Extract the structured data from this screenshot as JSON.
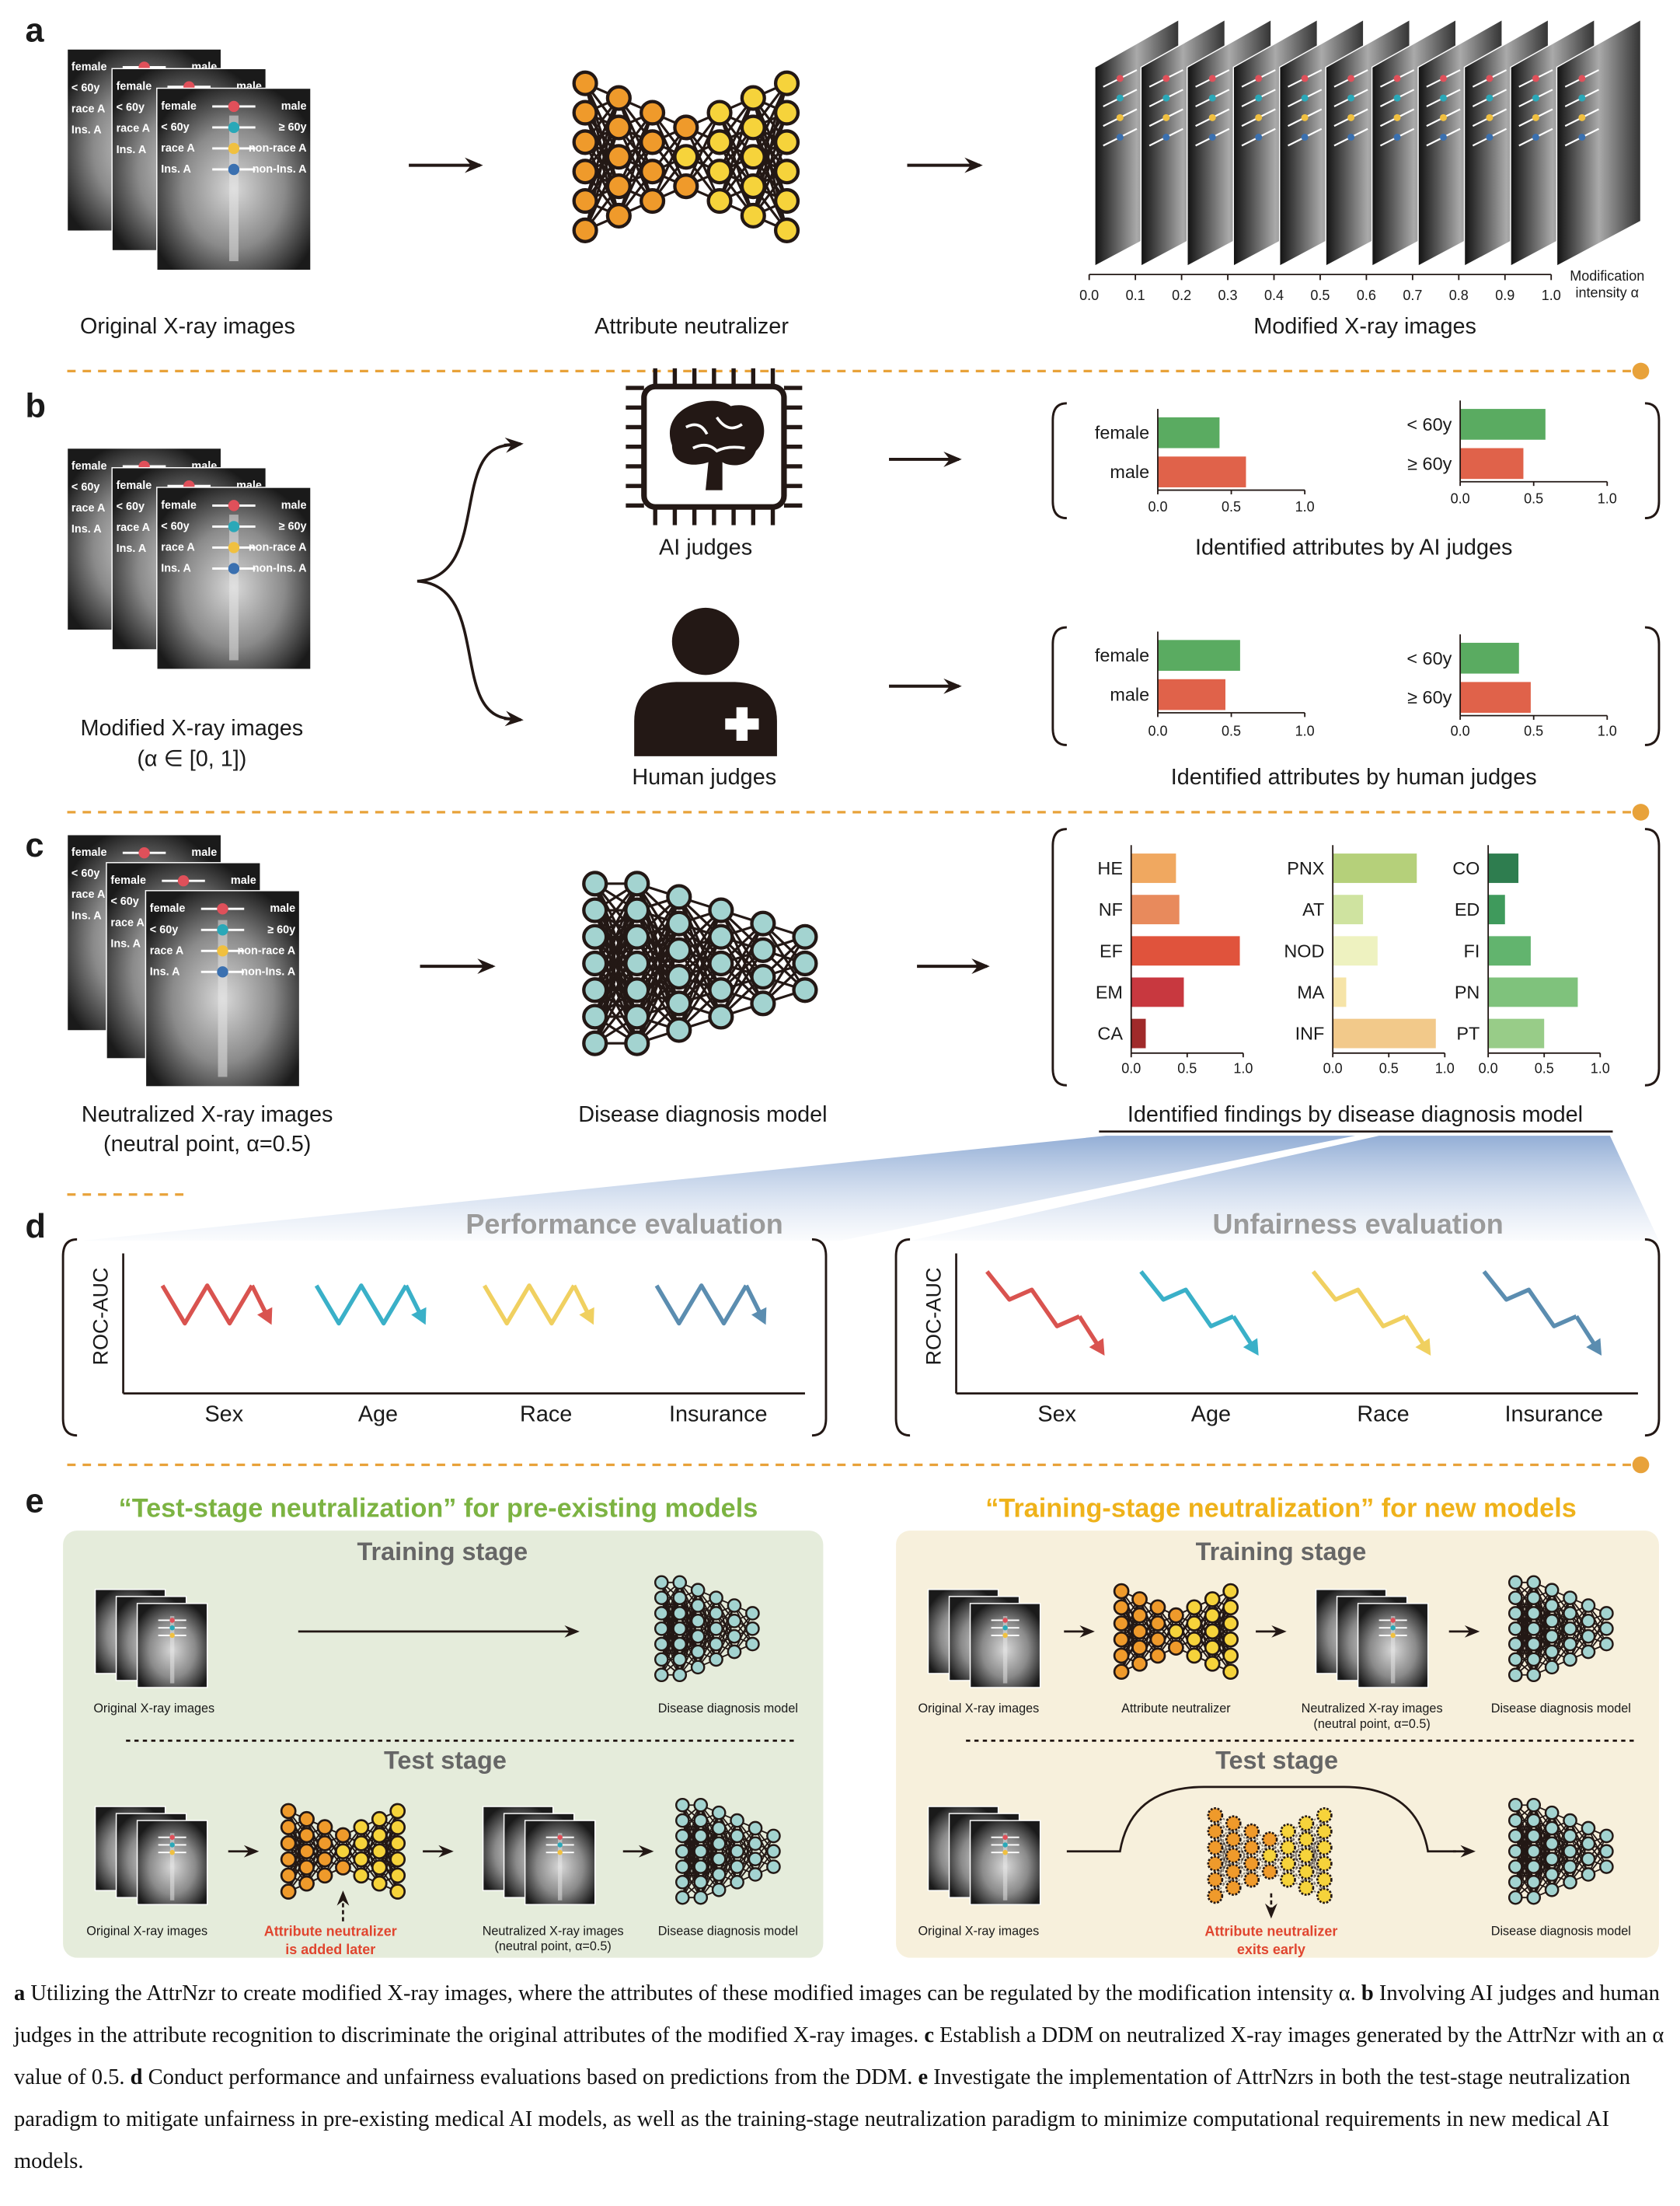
{
  "panels": {
    "xray_labels": [
      "female",
      "male",
      "< 60y",
      "≥ 60y",
      "race A",
      "non-race A",
      "Ins. A",
      "non-Ins. A"
    ],
    "a": {
      "label": "a",
      "original": "Original X-ray images",
      "neutralizer": "Attribute neutralizer",
      "modified": "Modified X-ray images",
      "alpha_ticks": [
        "0.0",
        "0.1",
        "0.2",
        "0.3",
        "0.4",
        "0.5",
        "0.6",
        "0.7",
        "0.8",
        "0.9",
        "1.0"
      ],
      "alpha_label": [
        "Modification",
        "intensity α"
      ]
    },
    "b": {
      "label": "b",
      "input": [
        "Modified X-ray images",
        "(α ∈ [0, 1])"
      ],
      "xlim": [
        0,
        1
      ],
      "xticks": [
        {
          "value": 0,
          "label": "0.0"
        },
        {
          "value": 0.5,
          "label": "0.5"
        },
        {
          "value": 1,
          "label": "1.0"
        }
      ],
      "ai": {
        "name": "AI judges",
        "title": "Identified attributes by AI judges",
        "charts": [
          {
            "categories": [
              "female",
              "male"
            ],
            "values": [
              0.42,
              0.6
            ],
            "colors": [
              "#5aab61",
              "#e0624a"
            ]
          },
          {
            "categories": [
              "< 60y",
              "≥ 60y"
            ],
            "values": [
              0.58,
              0.43
            ],
            "colors": [
              "#5aab61",
              "#e0624a"
            ]
          }
        ]
      },
      "human": {
        "name": "Human judges",
        "title": "Identified attributes by human judges",
        "charts": [
          {
            "categories": [
              "female",
              "male"
            ],
            "values": [
              0.56,
              0.46
            ],
            "colors": [
              "#5aab61",
              "#e0624a"
            ]
          },
          {
            "categories": [
              "< 60y",
              "≥ 60y"
            ],
            "values": [
              0.4,
              0.48
            ],
            "colors": [
              "#5aab61",
              "#e0624a"
            ]
          }
        ]
      }
    },
    "c": {
      "label": "c",
      "input": [
        "Neutralized X-ray images",
        "(neutral point, α=0.5)"
      ],
      "model": "Disease diagnosis model",
      "title": "Identified findings by disease diagnosis model",
      "xlim": [
        0,
        1
      ],
      "xticks": [
        {
          "value": 0,
          "label": "0.0"
        },
        {
          "value": 0.5,
          "label": "0.5"
        },
        {
          "value": 1,
          "label": "1.0"
        }
      ],
      "charts": [
        {
          "categories": [
            "HE",
            "NF",
            "EF",
            "EM",
            "CA"
          ],
          "values": [
            0.4,
            0.43,
            0.97,
            0.47,
            0.13
          ],
          "colors": [
            "#f0a860",
            "#e88a5c",
            "#e0533c",
            "#c8383f",
            "#a02a2a"
          ]
        },
        {
          "categories": [
            "PNX",
            "AT",
            "NOD",
            "MA",
            "INF"
          ],
          "values": [
            0.75,
            0.27,
            0.4,
            0.12,
            0.92
          ],
          "colors": [
            "#b5d07a",
            "#cfe3a0",
            "#eef2c0",
            "#f6e4a8",
            "#f2c98a"
          ]
        },
        {
          "categories": [
            "CO",
            "ED",
            "FI",
            "PN",
            "PT"
          ],
          "values": [
            0.27,
            0.15,
            0.38,
            0.8,
            0.5
          ],
          "colors": [
            "#2e7d4f",
            "#3f9a5c",
            "#62b46e",
            "#7fc27c",
            "#98cc88"
          ]
        }
      ]
    },
    "d": {
      "label": "d",
      "performance": "Performance evaluation",
      "unfairness": "Unfairness evaluation",
      "y_label": "ROC-AUC",
      "groups": [
        "Sex",
        "Age",
        "Race",
        "Insurance"
      ]
    },
    "e": {
      "label": "e",
      "left": {
        "title": "“Test-stage neutralization” for pre-existing models",
        "training": "Training stage",
        "test": "Test stage",
        "training_items": [
          "Original X-ray images",
          "Disease diagnosis model"
        ],
        "test_items": [
          "Original X-ray images",
          "Neutralized X-ray images",
          "(neutral point, α=0.5)",
          "Disease diagnosis model"
        ],
        "note": [
          "Attribute neutralizer",
          "is added later"
        ]
      },
      "right": {
        "title": "“Training-stage neutralization” for new models",
        "training": "Training stage",
        "test": "Test stage",
        "training_items": [
          "Original X-ray images",
          "Attribute neutralizer",
          "Neutralized X-ray images",
          "(neutral point, α=0.5)",
          "Disease diagnosis model"
        ],
        "test_items": [
          "Original X-ray images",
          "Disease diagnosis model"
        ],
        "note": [
          "Attribute neutralizer",
          "exits early"
        ]
      }
    }
  },
  "caption": [
    {
      "letter": "a",
      "text": "Utilizing the AttrNzr to create modified X-ray images, where the attributes of these modified images can be regulated by the modification intensity α."
    },
    {
      "letter": "b",
      "text": "Involving AI judges and human judges in the attribute recognition to discriminate the original attributes of the modified X-ray images."
    },
    {
      "letter": "c",
      "text": "Establish a DDM on neutralized X-ray images generated by the AttrNzr with an α value of 0.5."
    },
    {
      "letter": "d",
      "text": "Conduct performance and unfairness evaluations based on predictions from the DDM."
    },
    {
      "letter": "e",
      "text": "Investigate the implementation of AttrNzrs in both the test-stage neutralization paradigm to mitigate unfairness in pre-existing medical AI models, as well as the training-stage neutralization paradigm to minimize computational requirements in new medical AI models."
    }
  ]
}
